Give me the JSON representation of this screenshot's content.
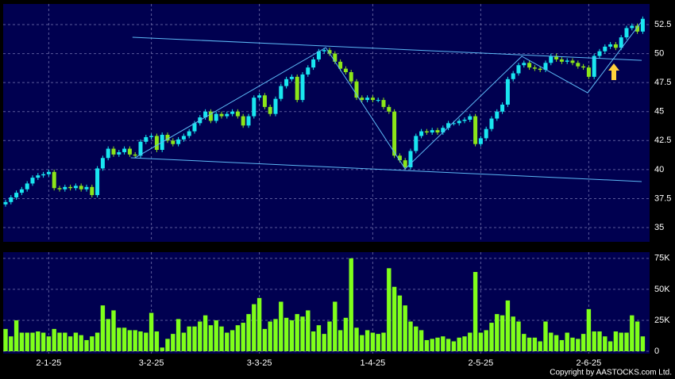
{
  "chart_data": [
    {
      "type": "candlestick",
      "up_color": "#19e6f0",
      "down_color": "#8ce619",
      "grid": true,
      "line_color": "#5cb8f5",
      "ylim": [
        33.77,
        54.28
      ],
      "yticks": [
        35,
        37.5,
        40,
        42.5,
        45,
        47.5,
        50,
        52.5
      ],
      "open": [
        37.0,
        37.2,
        37.6,
        38.0,
        38.3,
        38.8,
        39.3,
        39.5,
        39.6,
        39.8,
        38.4,
        38.3,
        38.5,
        38.4,
        38.6,
        38.3,
        38.5,
        37.8,
        40.1,
        41.0,
        41.8,
        41.3,
        41.5,
        41.8,
        41.3,
        41.2,
        42.4,
        42.8,
        42.9,
        41.7,
        43.0,
        42.5,
        42.2,
        42.6,
        42.9,
        43.3,
        44.0,
        44.5,
        45.0,
        44.2,
        44.8,
        44.6,
        44.8,
        45.0,
        44.6,
        43.8,
        44.6,
        46.2,
        46.4,
        45.4,
        44.8,
        46.1,
        47.2,
        47.8,
        48.0,
        46.0,
        48.2,
        48.8,
        49.5,
        50.2,
        50.3,
        50.0,
        49.3,
        48.7,
        48.4,
        47.6,
        46.2,
        46.0,
        46.2,
        46.0,
        46.0,
        45.4,
        45.0,
        41.2,
        40.8,
        40.2,
        41.6,
        42.9,
        43.3,
        43.2,
        43.4,
        43.2,
        43.6,
        44.0,
        44.0,
        44.2,
        44.3,
        44.6,
        42.2,
        42.7,
        43.5,
        44.4,
        45.0,
        45.6,
        47.8,
        48.3,
        49.0,
        49.2,
        48.8,
        48.7,
        48.6,
        49.2,
        49.8,
        49.5,
        49.3,
        49.4,
        49.2,
        48.9,
        48.8,
        48.0,
        49.8,
        50.2,
        50.6,
        50.8,
        50.5,
        51.4,
        52.2,
        52.4,
        51.9
      ],
      "high": [
        37.4,
        37.8,
        38.2,
        38.5,
        39.0,
        39.5,
        39.7,
        39.8,
        40.0,
        40.0,
        38.6,
        38.7,
        38.7,
        38.8,
        38.8,
        38.7,
        38.7,
        40.3,
        41.2,
        42.0,
        42.0,
        41.7,
        42.0,
        42.0,
        41.5,
        42.6,
        43.0,
        43.1,
        43.1,
        43.2,
        43.2,
        42.7,
        42.8,
        43.1,
        43.5,
        44.2,
        44.7,
        45.2,
        45.2,
        45.0,
        45.0,
        45.0,
        45.2,
        45.2,
        44.8,
        44.8,
        46.4,
        46.6,
        46.6,
        45.6,
        46.3,
        47.4,
        48.0,
        48.2,
        48.2,
        48.4,
        49.0,
        49.7,
        50.4,
        50.5,
        50.5,
        50.2,
        49.5,
        48.9,
        48.6,
        47.8,
        46.4,
        46.4,
        46.4,
        46.2,
        46.2,
        45.6,
        45.2,
        41.4,
        41.0,
        41.8,
        43.1,
        43.5,
        43.5,
        43.6,
        43.6,
        43.8,
        44.2,
        44.2,
        44.4,
        44.5,
        44.8,
        44.8,
        42.9,
        43.7,
        44.6,
        45.2,
        45.8,
        48.0,
        48.5,
        49.2,
        49.4,
        49.4,
        49.0,
        48.9,
        49.4,
        50.0,
        50.0,
        49.7,
        49.6,
        49.6,
        49.4,
        49.1,
        49.0,
        50.0,
        50.4,
        50.8,
        51.0,
        51.0,
        51.6,
        52.4,
        52.6,
        52.6,
        53.2
      ],
      "low": [
        36.8,
        37.0,
        37.4,
        37.8,
        38.1,
        38.6,
        39.1,
        39.3,
        39.4,
        38.2,
        38.1,
        38.1,
        38.2,
        38.2,
        38.1,
        38.1,
        37.6,
        37.6,
        39.9,
        40.8,
        41.1,
        41.1,
        41.3,
        41.1,
        41.0,
        41.0,
        42.2,
        42.6,
        41.5,
        41.5,
        42.3,
        42.0,
        42.0,
        42.4,
        42.7,
        43.1,
        43.8,
        44.3,
        44.0,
        44.0,
        44.4,
        44.4,
        44.6,
        44.4,
        43.6,
        43.6,
        44.4,
        46.0,
        45.2,
        44.6,
        44.6,
        45.9,
        47.0,
        47.6,
        45.8,
        45.8,
        48.0,
        48.6,
        49.3,
        50.0,
        49.8,
        49.1,
        48.5,
        48.2,
        47.4,
        46.0,
        45.8,
        45.8,
        45.8,
        45.8,
        45.2,
        44.8,
        41.0,
        40.6,
        40.0,
        40.0,
        41.4,
        42.7,
        43.0,
        43.0,
        43.0,
        43.0,
        43.4,
        43.8,
        43.8,
        44.0,
        44.1,
        42.0,
        42.0,
        42.5,
        43.3,
        44.2,
        44.8,
        45.4,
        47.6,
        48.1,
        48.8,
        48.6,
        48.5,
        48.4,
        48.4,
        49.0,
        49.3,
        49.1,
        49.1,
        49.0,
        48.7,
        48.6,
        47.8,
        47.8,
        49.6,
        50.0,
        50.4,
        50.3,
        50.3,
        51.2,
        52.0,
        51.7,
        51.7
      ],
      "close": [
        37.2,
        37.6,
        38.0,
        38.3,
        38.8,
        39.3,
        39.5,
        39.6,
        39.8,
        38.4,
        38.3,
        38.5,
        38.4,
        38.6,
        38.3,
        38.5,
        37.8,
        40.1,
        41.0,
        41.8,
        41.3,
        41.5,
        41.8,
        41.3,
        41.2,
        42.4,
        42.8,
        42.9,
        41.7,
        43.0,
        42.5,
        42.2,
        42.6,
        42.9,
        43.3,
        44.0,
        44.5,
        45.0,
        44.2,
        44.8,
        44.6,
        44.8,
        45.0,
        44.6,
        43.8,
        44.6,
        46.2,
        46.4,
        45.4,
        44.8,
        46.1,
        47.2,
        47.8,
        48.0,
        46.0,
        48.2,
        48.8,
        49.5,
        50.2,
        50.3,
        50.0,
        49.3,
        48.7,
        48.4,
        47.6,
        46.2,
        46.0,
        46.2,
        46.0,
        46.0,
        45.4,
        45.0,
        41.2,
        40.8,
        40.2,
        41.6,
        42.9,
        43.3,
        43.2,
        43.4,
        43.2,
        43.6,
        44.0,
        44.0,
        44.2,
        44.3,
        44.6,
        42.2,
        42.7,
        43.5,
        44.4,
        45.0,
        45.6,
        47.8,
        48.3,
        49.0,
        49.2,
        48.8,
        48.7,
        48.6,
        49.2,
        49.8,
        49.5,
        49.3,
        49.4,
        49.2,
        48.9,
        48.8,
        48.0,
        49.8,
        50.2,
        50.6,
        50.8,
        50.5,
        51.4,
        52.2,
        52.4,
        51.9,
        53.0
      ],
      "trendlines": [
        {
          "x": [
            23.5,
            117.8
          ],
          "y": [
            51.41,
            49.42
          ]
        },
        {
          "x": [
            23.2,
            117.8
          ],
          "y": [
            41.02,
            38.97
          ]
        },
        {
          "x": [
            24,
            59.3,
            74,
            95.6,
            107.8,
            117.8
          ],
          "y": [
            41.02,
            50.52,
            40.06,
            49.77,
            46.62,
            52.77
          ]
        }
      ]
    },
    {
      "type": "bar",
      "color": "#7fff1a",
      "grid": true,
      "ylim": [
        0,
        80000
      ],
      "yticks": [
        0,
        {
          "value": 25000,
          "label": "25K"
        },
        {
          "value": 50000,
          "label": "50K"
        },
        {
          "value": 75000,
          "label": "75K"
        }
      ],
      "categories": [
        null,
        null,
        null,
        null,
        null,
        null,
        null,
        null,
        "2-1-25",
        null,
        null,
        null,
        null,
        null,
        null,
        null,
        null,
        null,
        null,
        null,
        null,
        null,
        null,
        null,
        null,
        null,
        null,
        "3-2-25",
        null,
        null,
        null,
        null,
        null,
        null,
        null,
        null,
        null,
        null,
        null,
        null,
        null,
        null,
        null,
        null,
        null,
        null,
        null,
        "3-3-25",
        null,
        null,
        null,
        null,
        null,
        null,
        null,
        null,
        null,
        null,
        null,
        null,
        null,
        null,
        null,
        null,
        null,
        null,
        null,
        null,
        "1-4-25",
        null,
        null,
        null,
        null,
        null,
        null,
        null,
        null,
        null,
        null,
        null,
        null,
        null,
        null,
        null,
        null,
        null,
        null,
        null,
        "2-5-25",
        null,
        null,
        null,
        null,
        null,
        null,
        null,
        null,
        null,
        null,
        null,
        null,
        null,
        null,
        null,
        null,
        null,
        null,
        null,
        "2-6-25",
        null,
        null,
        null,
        null,
        null,
        null,
        null,
        null,
        null,
        null
      ],
      "values": [
        18000,
        12000,
        25000,
        15000,
        15000,
        15000,
        16000,
        15000,
        12000,
        18000,
        15000,
        15000,
        12000,
        15000,
        13000,
        9000,
        12000,
        15000,
        37000,
        26000,
        33000,
        19000,
        19000,
        17000,
        17000,
        16000,
        15000,
        31000,
        16000,
        3000,
        10000,
        14000,
        26000,
        15000,
        20000,
        20000,
        24000,
        29000,
        21000,
        25000,
        20000,
        15000,
        17000,
        21000,
        23000,
        30000,
        38000,
        43000,
        18000,
        24000,
        26000,
        40000,
        27000,
        25000,
        30000,
        28000,
        33000,
        16000,
        21000,
        14000,
        24000,
        40000,
        17000,
        27000,
        75000,
        19000,
        13000,
        17000,
        15000,
        14000,
        15000,
        67000,
        52000,
        45000,
        37000,
        24000,
        20000,
        17000,
        9000,
        10000,
        11000,
        12000,
        10000,
        8000,
        11000,
        12000,
        15000,
        64000,
        15000,
        17000,
        23000,
        30000,
        29000,
        41000,
        28000,
        24000,
        14000,
        11000,
        11000,
        8000,
        24000,
        15000,
        13000,
        9000,
        15000,
        11000,
        10000,
        14000,
        34000,
        16000,
        16000,
        12000,
        8000,
        16000,
        15000,
        15000,
        29000,
        24000,
        12000
      ]
    }
  ],
  "copyright": "Copyright by AASTOCKS.com Ltd."
}
